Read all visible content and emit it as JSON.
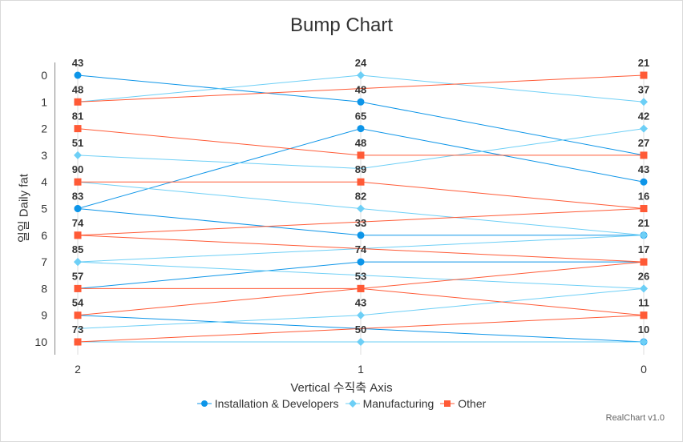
{
  "chart_data": {
    "type": "line",
    "title": "Bump Chart",
    "xlabel": "Vertical 수직축 Axis",
    "ylabel": "일일 Daily fat",
    "categories": [
      "2",
      "1",
      "0"
    ],
    "y_ticks": [
      "0",
      "1",
      "2",
      "3",
      "4",
      "5",
      "6",
      "7",
      "8",
      "9",
      "10"
    ],
    "ylim": [
      0,
      10
    ],
    "y_reversed": true,
    "legend_position": "bottom",
    "credit": "RealChart v1.0",
    "series": [
      {
        "name": "Installation & Developers",
        "color": "#0d95e8",
        "marker": "circle",
        "ranks": [
          0,
          1,
          3
        ],
        "labels": [
          43,
          48,
          27
        ]
      },
      {
        "name": "Installation & Developers",
        "color": "#0d95e8",
        "marker": "circle",
        "ranks": [
          5,
          2,
          4
        ],
        "labels": [
          83,
          65,
          43
        ]
      },
      {
        "name": "Installation & Developers",
        "color": "#0d95e8",
        "marker": "circle",
        "ranks": [
          5,
          6,
          6
        ],
        "labels": [
          83,
          33,
          21
        ],
        "skip_last": true
      },
      {
        "name": "Installation & Developers",
        "color": "#0d95e8",
        "marker": "circle",
        "ranks": [
          8,
          7,
          7
        ],
        "labels": [
          57,
          74,
          17
        ],
        "skip_last": true
      },
      {
        "name": "Installation & Developers",
        "color": "#0d95e8",
        "marker": "circle",
        "ranks": [
          9,
          9.5,
          10
        ],
        "labels": [
          54,
          null,
          10
        ]
      },
      {
        "name": "Manufacturing",
        "color": "#6dcff6",
        "marker": "diamond",
        "ranks": [
          3,
          3.5,
          2
        ],
        "labels": [
          51,
          null,
          42
        ]
      },
      {
        "name": "Manufacturing",
        "color": "#6dcff6",
        "marker": "diamond",
        "ranks": [
          4,
          5,
          6
        ],
        "labels": [
          90,
          82,
          21
        ]
      },
      {
        "name": "Manufacturing",
        "color": "#6dcff6",
        "marker": "diamond",
        "ranks": [
          7,
          6.5,
          6
        ],
        "labels": [
          85,
          null,
          21
        ]
      },
      {
        "name": "Manufacturing",
        "color": "#6dcff6",
        "marker": "diamond",
        "ranks": [
          7,
          7.5,
          8
        ],
        "labels": [
          85,
          null,
          26
        ]
      },
      {
        "name": "Manufacturing",
        "color": "#6dcff6",
        "marker": "diamond",
        "ranks": [
          9.5,
          9,
          8
        ],
        "labels": [
          null,
          43,
          26
        ]
      },
      {
        "name": "Manufacturing",
        "color": "#6dcff6",
        "marker": "diamond",
        "ranks": [
          10,
          10,
          10
        ],
        "labels": [
          null,
          50,
          null
        ]
      },
      {
        "name": "Manufacturing",
        "color": "#6dcff6",
        "marker": "diamond",
        "ranks": [
          1,
          0,
          1
        ],
        "labels": [
          null,
          24,
          37
        ]
      },
      {
        "name": "Other",
        "color": "#ff5a36",
        "marker": "square",
        "ranks": [
          1,
          0.5,
          0
        ],
        "labels": [
          48,
          null,
          21
        ]
      },
      {
        "name": "Other",
        "color": "#ff5a36",
        "marker": "square",
        "ranks": [
          2,
          3,
          3
        ],
        "labels": [
          81,
          48,
          null
        ]
      },
      {
        "name": "Other",
        "color": "#ff5a36",
        "marker": "square",
        "ranks": [
          6,
          5.5,
          5
        ],
        "labels": [
          74,
          null,
          16
        ]
      },
      {
        "name": "Other",
        "color": "#ff5a36",
        "marker": "square",
        "ranks": [
          6,
          6.5,
          7
        ],
        "labels": [
          74,
          null,
          17
        ]
      },
      {
        "name": "Other",
        "color": "#ff5a36",
        "marker": "square",
        "ranks": [
          4,
          4,
          5
        ],
        "labels": [
          null,
          89,
          16
        ]
      },
      {
        "name": "Other",
        "color": "#ff5a36",
        "marker": "square",
        "ranks": [
          8,
          8,
          7
        ],
        "labels": [
          null,
          53,
          17
        ]
      },
      {
        "name": "Other",
        "color": "#ff5a36",
        "marker": "square",
        "ranks": [
          9,
          8,
          9
        ],
        "labels": [
          null,
          53,
          11
        ]
      },
      {
        "name": "Other",
        "color": "#ff5a36",
        "marker": "square",
        "ranks": [
          10,
          9.5,
          9
        ],
        "labels": [
          73,
          null,
          11
        ]
      }
    ],
    "legend": [
      {
        "label": "Installation & Developers",
        "color": "#0d95e8",
        "marker": "circle"
      },
      {
        "label": "Manufacturing",
        "color": "#6dcff6",
        "marker": "diamond"
      },
      {
        "label": "Other",
        "color": "#ff5a36",
        "marker": "square"
      }
    ]
  }
}
